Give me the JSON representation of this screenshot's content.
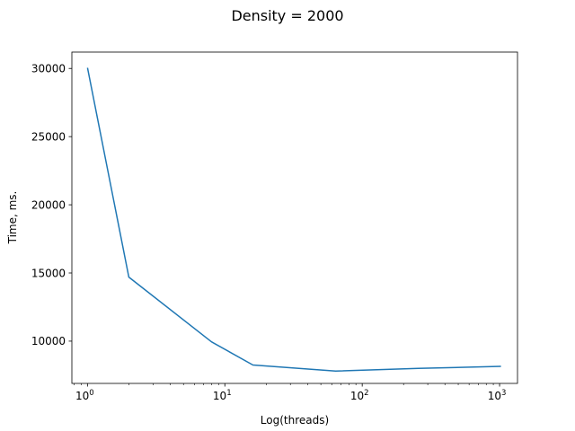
{
  "chart_data": {
    "type": "line",
    "title": "Density = 2000",
    "xlabel": "Log(threads)",
    "ylabel": "Time, ms.",
    "xscale": "log",
    "xlim": [
      0.77,
      1350
    ],
    "ylim": [
      6900,
      31200
    ],
    "x_ticks": [
      {
        "value": 1,
        "base": "10",
        "exp": "0"
      },
      {
        "value": 10,
        "base": "10",
        "exp": "1"
      },
      {
        "value": 100,
        "base": "10",
        "exp": "2"
      },
      {
        "value": 1000,
        "base": "10",
        "exp": "3"
      }
    ],
    "y_ticks": [
      10000,
      15000,
      20000,
      25000,
      30000
    ],
    "y_tick_labels": [
      "10000",
      "15000",
      "20000",
      "25000",
      "30000"
    ],
    "grid": false,
    "series": [
      {
        "color": "#1f77b4",
        "x": [
          1,
          2,
          8,
          16,
          64,
          256,
          1024
        ],
        "y": [
          30050,
          14700,
          9950,
          8250,
          7800,
          8000,
          8150
        ]
      }
    ]
  }
}
